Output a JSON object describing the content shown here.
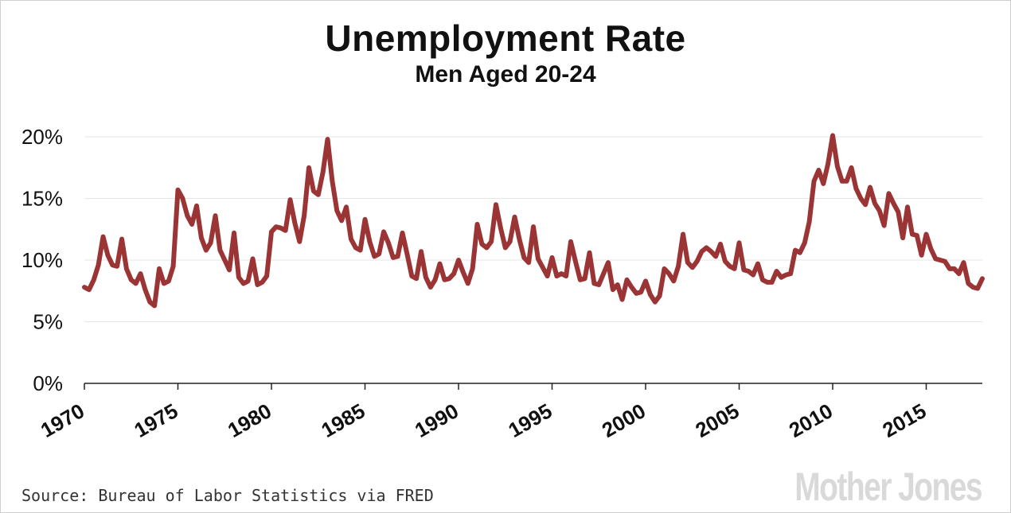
{
  "chart_data": {
    "type": "line",
    "title": "Unemployment Rate",
    "subtitle": "Men Aged 20-24",
    "source": "Source: Bureau of Labor Statistics via FRED",
    "logo": "Mother Jones",
    "xlim": [
      1970,
      2018
    ],
    "ylim": [
      0,
      20
    ],
    "x_ticks": [
      1970,
      1975,
      1980,
      1985,
      1990,
      1995,
      2000,
      2005,
      2010,
      2015
    ],
    "y_ticks": [
      0,
      5,
      10,
      15,
      20
    ],
    "y_tick_labels": [
      "0%",
      "5%",
      "10%",
      "15%",
      "20%"
    ],
    "grid": "horizontal",
    "line_color": "#9b3535",
    "series": [
      {
        "x": [
          1970.0,
          1970.25,
          1970.5,
          1970.75,
          1971.0,
          1971.25,
          1971.5,
          1971.75,
          1972.0,
          1972.25,
          1972.5,
          1972.75,
          1973.0,
          1973.25,
          1973.5,
          1973.75,
          1974.0,
          1974.25,
          1974.5,
          1974.75,
          1975.0,
          1975.25,
          1975.5,
          1975.75,
          1976.0,
          1976.25,
          1976.5,
          1976.75,
          1977.0,
          1977.25,
          1977.5,
          1977.75,
          1978.0,
          1978.25,
          1978.5,
          1978.75,
          1979.0,
          1979.25,
          1979.5,
          1979.75,
          1980.0,
          1980.25,
          1980.5,
          1980.75,
          1981.0,
          1981.25,
          1981.5,
          1981.75,
          1982.0,
          1982.25,
          1982.5,
          1982.75,
          1983.0,
          1983.25,
          1983.5,
          1983.75,
          1984.0,
          1984.25,
          1984.5,
          1984.75,
          1985.0,
          1985.25,
          1985.5,
          1985.75,
          1986.0,
          1986.25,
          1986.5,
          1986.75,
          1987.0,
          1987.25,
          1987.5,
          1987.75,
          1988.0,
          1988.25,
          1988.5,
          1988.75,
          1989.0,
          1989.25,
          1989.5,
          1989.75,
          1990.0,
          1990.25,
          1990.5,
          1990.75,
          1991.0,
          1991.25,
          1991.5,
          1991.75,
          1992.0,
          1992.25,
          1992.5,
          1992.75,
          1993.0,
          1993.25,
          1993.5,
          1993.75,
          1994.0,
          1994.25,
          1994.5,
          1994.75,
          1995.0,
          1995.25,
          1995.5,
          1995.75,
          1996.0,
          1996.25,
          1996.5,
          1996.75,
          1997.0,
          1997.25,
          1997.5,
          1997.75,
          1998.0,
          1998.25,
          1998.5,
          1998.75,
          1999.0,
          1999.25,
          1999.5,
          1999.75,
          2000.0,
          2000.25,
          2000.5,
          2000.75,
          2001.0,
          2001.25,
          2001.5,
          2001.75,
          2002.0,
          2002.25,
          2002.5,
          2002.75,
          2003.0,
          2003.25,
          2003.5,
          2003.75,
          2004.0,
          2004.25,
          2004.5,
          2004.75,
          2005.0,
          2005.25,
          2005.5,
          2005.75,
          2006.0,
          2006.25,
          2006.5,
          2006.75,
          2007.0,
          2007.25,
          2007.5,
          2007.75,
          2008.0,
          2008.25,
          2008.5,
          2008.75,
          2009.0,
          2009.25,
          2009.5,
          2009.75,
          2010.0,
          2010.25,
          2010.5,
          2010.75,
          2011.0,
          2011.25,
          2011.5,
          2011.75,
          2012.0,
          2012.25,
          2012.5,
          2012.75,
          2013.0,
          2013.25,
          2013.5,
          2013.75,
          2014.0,
          2014.25,
          2014.5,
          2014.75,
          2015.0,
          2015.25,
          2015.5,
          2015.75,
          2016.0,
          2016.25,
          2016.5,
          2016.75,
          2017.0,
          2017.25,
          2017.5,
          2017.75,
          2018.0
        ],
        "y": [
          7.8,
          7.6,
          8.4,
          9.6,
          11.9,
          10.4,
          9.6,
          9.5,
          11.7,
          9.3,
          8.4,
          8.1,
          8.9,
          7.6,
          6.6,
          6.3,
          9.3,
          8.1,
          8.3,
          9.5,
          15.7,
          15.0,
          13.6,
          12.9,
          14.4,
          11.8,
          10.8,
          11.4,
          13.6,
          10.8,
          10.0,
          9.2,
          12.2,
          8.6,
          8.1,
          8.3,
          10.1,
          8.0,
          8.2,
          8.7,
          12.3,
          12.7,
          12.6,
          12.4,
          14.9,
          13.0,
          11.5,
          13.6,
          17.5,
          15.6,
          15.3,
          17.1,
          19.8,
          16.4,
          14.0,
          13.2,
          14.3,
          11.7,
          11.0,
          10.8,
          13.3,
          11.5,
          10.3,
          10.5,
          12.3,
          11.4,
          10.2,
          10.3,
          12.2,
          10.5,
          8.7,
          8.5,
          10.7,
          8.6,
          7.8,
          8.4,
          9.7,
          8.4,
          8.5,
          8.9,
          10.0,
          9.0,
          8.1,
          9.3,
          12.9,
          11.3,
          11.0,
          11.5,
          14.5,
          12.6,
          11.0,
          11.5,
          13.5,
          11.7,
          10.2,
          9.8,
          12.7,
          10.1,
          9.4,
          8.7,
          10.2,
          8.7,
          8.9,
          8.7,
          11.5,
          9.9,
          8.4,
          8.5,
          10.6,
          8.1,
          8.0,
          8.9,
          9.8,
          7.6,
          8.0,
          6.8,
          8.4,
          7.8,
          7.3,
          7.4,
          8.3,
          7.2,
          6.6,
          7.1,
          9.3,
          8.9,
          8.3,
          9.5,
          12.1,
          9.8,
          9.4,
          9.9,
          10.7,
          11.0,
          10.7,
          10.3,
          11.3,
          9.9,
          9.5,
          9.3,
          11.4,
          9.2,
          9.1,
          8.8,
          9.7,
          8.4,
          8.2,
          8.2,
          9.1,
          8.6,
          8.8,
          8.9,
          10.8,
          10.6,
          11.4,
          13.1,
          16.4,
          17.3,
          16.2,
          17.8,
          20.1,
          17.6,
          16.4,
          16.4,
          17.5,
          15.8,
          15.0,
          14.5,
          15.9,
          14.6,
          14.0,
          12.8,
          15.4,
          14.6,
          13.9,
          11.8,
          14.3,
          12.1,
          12.0,
          10.4,
          12.1,
          10.9,
          10.1,
          10.0,
          9.9,
          9.3,
          9.3,
          8.9,
          9.8,
          8.1,
          7.8,
          7.7,
          8.5
        ]
      }
    ]
  }
}
